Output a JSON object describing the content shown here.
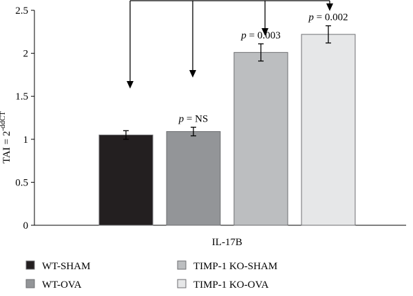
{
  "chart_data": {
    "type": "bar",
    "categories": [
      "IL-17B"
    ],
    "ylabel_main": "TAI = 2",
    "ylabel_sup": "-ddCT",
    "ylim": [
      0,
      2.5
    ],
    "yticks": [
      "0",
      "0.5",
      "1",
      "1.5",
      "2",
      "2.5"
    ],
    "ytick_values": [
      0,
      0.5,
      1,
      1.5,
      2,
      2.5
    ],
    "series": [
      {
        "name": "WT-SHAM",
        "values": [
          1.05
        ],
        "error": [
          0.05
        ],
        "color": "#231f20",
        "pvalue": ""
      },
      {
        "name": "WT-OVA",
        "values": [
          1.09
        ],
        "error": [
          0.05
        ],
        "color": "#939598",
        "pvalue": "p = NS"
      },
      {
        "name": "TIMP-1 KO-SHAM",
        "values": [
          2.01
        ],
        "error": [
          0.1
        ],
        "color": "#bcbec0",
        "pvalue": "p = 0.003"
      },
      {
        "name": "TIMP-1 KO-OVA",
        "values": [
          2.22
        ],
        "error": [
          0.1
        ],
        "color": "#e6e7e8",
        "pvalue": "p = 0.002"
      }
    ],
    "legend": {
      "position": "bottom",
      "columns": 2
    },
    "grid": false
  }
}
